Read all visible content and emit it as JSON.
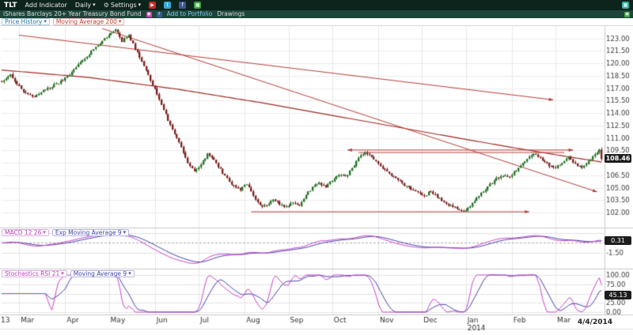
{
  "icons": {
    "chevron_down": "▾",
    "gear": "⚙"
  },
  "toolbar": {
    "symbol": "TLT",
    "add_indicator": "Add Indicator",
    "period": "Daily",
    "settings": "Settings",
    "social_icons": [
      {
        "name": "youtube-icon",
        "glyph": "▶",
        "bg": "#cc2a1e"
      },
      {
        "name": "twitter-icon",
        "glyph": "t",
        "bg": "#35a8d8"
      },
      {
        "name": "facebook-icon",
        "glyph": "f",
        "bg": "#3b5998"
      },
      {
        "name": "stocktwits-icon",
        "glyph": "▦",
        "bg": "#3fa23f"
      }
    ],
    "apps_icon": {
      "glyph": "▦",
      "bg": "#2fb3a3"
    }
  },
  "title_bar": {
    "fund_name": "iShares Barclays 20+ Year Treasury Bond Fund",
    "icons": [
      {
        "name": "share-icon",
        "glyph": "▣",
        "bg": "#cc3fae"
      },
      {
        "name": "facebook-share-icon",
        "glyph": "f",
        "bg": "#3b5998"
      }
    ],
    "add_to_portfolio": "Add to Portfolio",
    "drawings": "Drawings",
    "expand_icon": {
      "glyph": "▣",
      "bg": "#3fa23f"
    }
  },
  "price_panel": {
    "chip_price_history": "Price History",
    "chip_ma200": "Moving Average 200",
    "last_price_badge": "108.46",
    "axis_labels": [
      {
        "v": 123.0,
        "t": "123.00"
      },
      {
        "v": 121.5,
        "t": "121.50"
      },
      {
        "v": 120.0,
        "t": "120.00"
      },
      {
        "v": 118.5,
        "t": "118.50"
      },
      {
        "v": 117.0,
        "t": "117.00"
      },
      {
        "v": 115.5,
        "t": "115.50"
      },
      {
        "v": 114.0,
        "t": "114.00"
      },
      {
        "v": 112.5,
        "t": "112.50"
      },
      {
        "v": 111.0,
        "t": "111.00"
      },
      {
        "v": 109.5,
        "t": "109.50"
      },
      {
        "v": 106.5,
        "t": "106.50"
      },
      {
        "v": 105.0,
        "t": "105.00"
      },
      {
        "v": 103.5,
        "t": "103.50"
      },
      {
        "v": 102.0,
        "t": "102.00"
      }
    ]
  },
  "macd_panel": {
    "chip_macd": "MACD 12 26",
    "chip_ema": "Exp Moving Average 9",
    "badge": "0.31",
    "axis_labels": [
      {
        "v": -1.5,
        "t": "-1.50"
      }
    ]
  },
  "stoch_panel": {
    "chip_stoch": "Stochastics RSI 21",
    "chip_ma": "Moving Average 9",
    "badge": "45.13",
    "axis_labels": [
      {
        "v": 100,
        "t": "100.00"
      },
      {
        "v": 75,
        "t": "75.00"
      },
      {
        "v": 50,
        "t": "50.00"
      },
      {
        "v": 25,
        "t": "25.00"
      },
      {
        "v": 0,
        "t": "0.00"
      }
    ]
  },
  "x_axis": {
    "year_partial": "13",
    "months": [
      {
        "label": "Mar",
        "day": 8
      },
      {
        "label": "Apr",
        "day": 29
      },
      {
        "label": "May",
        "day": 49
      },
      {
        "label": "Jun",
        "day": 70
      },
      {
        "label": "Jul",
        "day": 90
      },
      {
        "label": "Aug",
        "day": 111
      },
      {
        "label": "Sep",
        "day": 131
      },
      {
        "label": "Oct",
        "day": 151
      },
      {
        "label": "Nov",
        "day": 172
      },
      {
        "label": "Dec",
        "day": 192
      },
      {
        "label": "Jan",
        "day": 212
      },
      {
        "label": "Feb",
        "day": 233
      },
      {
        "label": "Mar",
        "day": 253
      }
    ],
    "year_2014": {
      "label": "2014",
      "day": 212
    },
    "last_date": "4/4/2014"
  },
  "chart_data": {
    "type": "candlestick",
    "title": "TLT — iShares Barclays 20+ Year Treasury Bond Fund, Daily, Mar 2013 – Apr 4 2014",
    "days": 275,
    "last_close": 108.46,
    "macd_last": 0.31,
    "stoch_last": 45.13,
    "price_range": [
      100.2,
      124.5
    ],
    "price_axis": {
      "min": 102,
      "max": 123,
      "step": 1.5
    },
    "price_anchors": [
      [
        0,
        117.8
      ],
      [
        4,
        118.6
      ],
      [
        9,
        116.8
      ],
      [
        14,
        115.9
      ],
      [
        20,
        116.9
      ],
      [
        26,
        117.6
      ],
      [
        31,
        118.7
      ],
      [
        36,
        120.2
      ],
      [
        41,
        121.4
      ],
      [
        45,
        122.4
      ],
      [
        49,
        123.5
      ],
      [
        52,
        124.0
      ],
      [
        55,
        122.7
      ],
      [
        58,
        123.4
      ],
      [
        61,
        121.8
      ],
      [
        64,
        120.3
      ],
      [
        67,
        118.6
      ],
      [
        70,
        116.8
      ],
      [
        73,
        114.9
      ],
      [
        76,
        113.2
      ],
      [
        79,
        111.6
      ],
      [
        82,
        109.8
      ],
      [
        85,
        108.0
      ],
      [
        88,
        106.9
      ],
      [
        91,
        107.8
      ],
      [
        94,
        109.0
      ],
      [
        97,
        108.3
      ],
      [
        100,
        107.2
      ],
      [
        103,
        106.1
      ],
      [
        106,
        105.1
      ],
      [
        109,
        104.8
      ],
      [
        112,
        105.5
      ],
      [
        115,
        104.0
      ],
      [
        118,
        102.9
      ],
      [
        121,
        102.8
      ],
      [
        124,
        103.7
      ],
      [
        127,
        103.0
      ],
      [
        130,
        102.7
      ],
      [
        133,
        103.3
      ],
      [
        136,
        102.9
      ],
      [
        139,
        104.2
      ],
      [
        142,
        105.0
      ],
      [
        145,
        105.6
      ],
      [
        148,
        105.1
      ],
      [
        151,
        105.9
      ],
      [
        154,
        106.6
      ],
      [
        157,
        106.3
      ],
      [
        160,
        107.4
      ],
      [
        163,
        108.7
      ],
      [
        166,
        109.2
      ],
      [
        169,
        108.7
      ],
      [
        172,
        107.9
      ],
      [
        175,
        107.1
      ],
      [
        178,
        106.4
      ],
      [
        181,
        105.9
      ],
      [
        184,
        105.3
      ],
      [
        187,
        104.8
      ],
      [
        190,
        104.4
      ],
      [
        193,
        104.0
      ],
      [
        196,
        104.6
      ],
      [
        199,
        103.9
      ],
      [
        202,
        103.3
      ],
      [
        205,
        102.8
      ],
      [
        208,
        102.5
      ],
      [
        211,
        102.2
      ],
      [
        214,
        102.7
      ],
      [
        217,
        103.8
      ],
      [
        220,
        104.7
      ],
      [
        223,
        105.4
      ],
      [
        226,
        106.1
      ],
      [
        229,
        106.5
      ],
      [
        232,
        106.3
      ],
      [
        235,
        107.1
      ],
      [
        238,
        107.9
      ],
      [
        241,
        108.7
      ],
      [
        244,
        109.1
      ],
      [
        247,
        108.3
      ],
      [
        250,
        107.7
      ],
      [
        253,
        107.4
      ],
      [
        256,
        108.1
      ],
      [
        259,
        108.6
      ],
      [
        262,
        107.9
      ],
      [
        265,
        107.4
      ],
      [
        268,
        108.2
      ],
      [
        271,
        109.1
      ],
      [
        273,
        109.5
      ],
      [
        274,
        108.46
      ]
    ],
    "ma200_anchors": [
      [
        0,
        119.2
      ],
      [
        40,
        118.3
      ],
      [
        80,
        116.9
      ],
      [
        120,
        115.2
      ],
      [
        160,
        113.3
      ],
      [
        200,
        111.4
      ],
      [
        230,
        110.0
      ],
      [
        255,
        108.9
      ],
      [
        274,
        108.1
      ]
    ],
    "trendlines": [
      {
        "d1": 8,
        "p1": 123.4,
        "d2": 252,
        "p2": 115.6,
        "arrow": "end"
      },
      {
        "d1": 46,
        "p1": 124.2,
        "d2": 272,
        "p2": 104.5,
        "arrow": "end"
      },
      {
        "d1": 158,
        "p1": 109.55,
        "d2": 261,
        "p2": 109.55,
        "arrow": "both"
      },
      {
        "d1": 163,
        "p1": 109.25,
        "d2": 257,
        "p2": 109.25,
        "arrow": "none"
      },
      {
        "d1": 114,
        "p1": 102.1,
        "d2": 241,
        "p2": 102.1,
        "arrow": "end"
      }
    ],
    "indicators": [
      {
        "name": "MACD",
        "fast": 12,
        "slow": 26,
        "signal": 9,
        "last": 0.31
      },
      {
        "name": "Stochastics RSI",
        "period": 21,
        "ma": 9,
        "last": 45.13,
        "range": [
          0,
          100
        ]
      }
    ],
    "colors": {
      "up": "#267326",
      "down": "#7e2222",
      "trendline": "#b5403a",
      "ma200": "#9e2b25",
      "macd_line": "#cc44cc",
      "macd_signal": "#4343a8",
      "stoch_line": "#cc44cc",
      "stoch_ma": "#4343a8",
      "badge_bg": "#1d1d1d"
    }
  }
}
